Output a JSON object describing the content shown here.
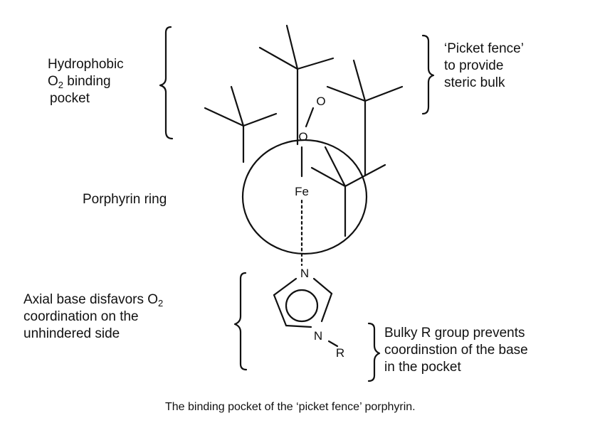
{
  "labels": {
    "pocket": {
      "line1": "Hydrophobic",
      "line2_prefix": "O",
      "line2_sub": "2",
      "line2_suffix": " binding",
      "line3": "pocket"
    },
    "fence": {
      "line1": "‘Picket fence’",
      "line2": "to provide",
      "line3": "steric bulk"
    },
    "ring": "Porphyrin ring",
    "axial": {
      "line1_prefix": "Axial base disfavors  O",
      "line1_sub": "2",
      "line2": "coordination on the",
      "line3": "unhindered side"
    },
    "bulky": {
      "line1": "Bulky R group prevents",
      "line2": "coordinstion of the base",
      "line3": "in the pocket"
    }
  },
  "atoms": {
    "iron": "Fe",
    "oxygen_top": "O",
    "oxygen_bottom": "O",
    "nitrogen_top": "N",
    "nitrogen_bottom": "N",
    "r_group": "R"
  },
  "caption": "The binding pocket of the ‘picket fence’ porphyrin."
}
